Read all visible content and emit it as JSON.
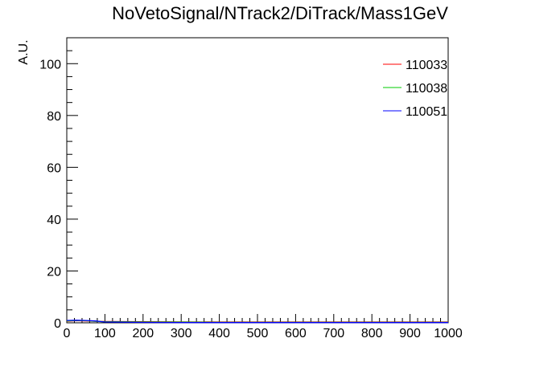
{
  "chart_data": {
    "type": "line",
    "title": "NoVetoSignal/NTrack2/DiTrack/Mass1GeV",
    "xlabel": "",
    "ylabel": "A.U.",
    "xlim": [
      0,
      1000
    ],
    "ylim": [
      0,
      110
    ],
    "x_ticks": [
      0,
      100,
      200,
      300,
      400,
      500,
      600,
      700,
      800,
      900,
      1000
    ],
    "y_ticks": [
      0,
      20,
      40,
      60,
      80,
      100
    ],
    "grid": false,
    "legend_position": "top-right",
    "series": [
      {
        "name": "110033",
        "color": "#ff0000",
        "x": [
          0,
          25,
          50,
          75,
          100,
          200,
          300,
          400,
          500,
          600,
          700,
          800,
          900,
          1000
        ],
        "y": [
          0.6,
          0.8,
          0.7,
          0.6,
          0.5,
          0.4,
          0.35,
          0.3,
          0.3,
          0.3,
          0.3,
          0.3,
          0.3,
          0.3
        ]
      },
      {
        "name": "110038",
        "color": "#00cc00",
        "x": [
          0,
          25,
          50,
          75,
          100,
          200,
          300,
          400,
          500,
          600,
          700,
          800,
          900,
          1000
        ],
        "y": [
          0.7,
          0.9,
          0.8,
          0.6,
          0.4,
          0.3,
          0.25,
          0.2,
          0.2,
          0.2,
          0.2,
          0.2,
          0.2,
          0.2
        ]
      },
      {
        "name": "110051",
        "color": "#0000ff",
        "x": [
          0,
          25,
          50,
          75,
          100,
          200,
          300,
          400,
          500,
          600,
          700,
          800,
          900,
          1000
        ],
        "y": [
          0.9,
          1.0,
          0.9,
          0.7,
          0.3,
          0.15,
          0.1,
          0.1,
          0.1,
          0.1,
          0.1,
          0.1,
          0.1,
          0.1
        ]
      }
    ]
  }
}
